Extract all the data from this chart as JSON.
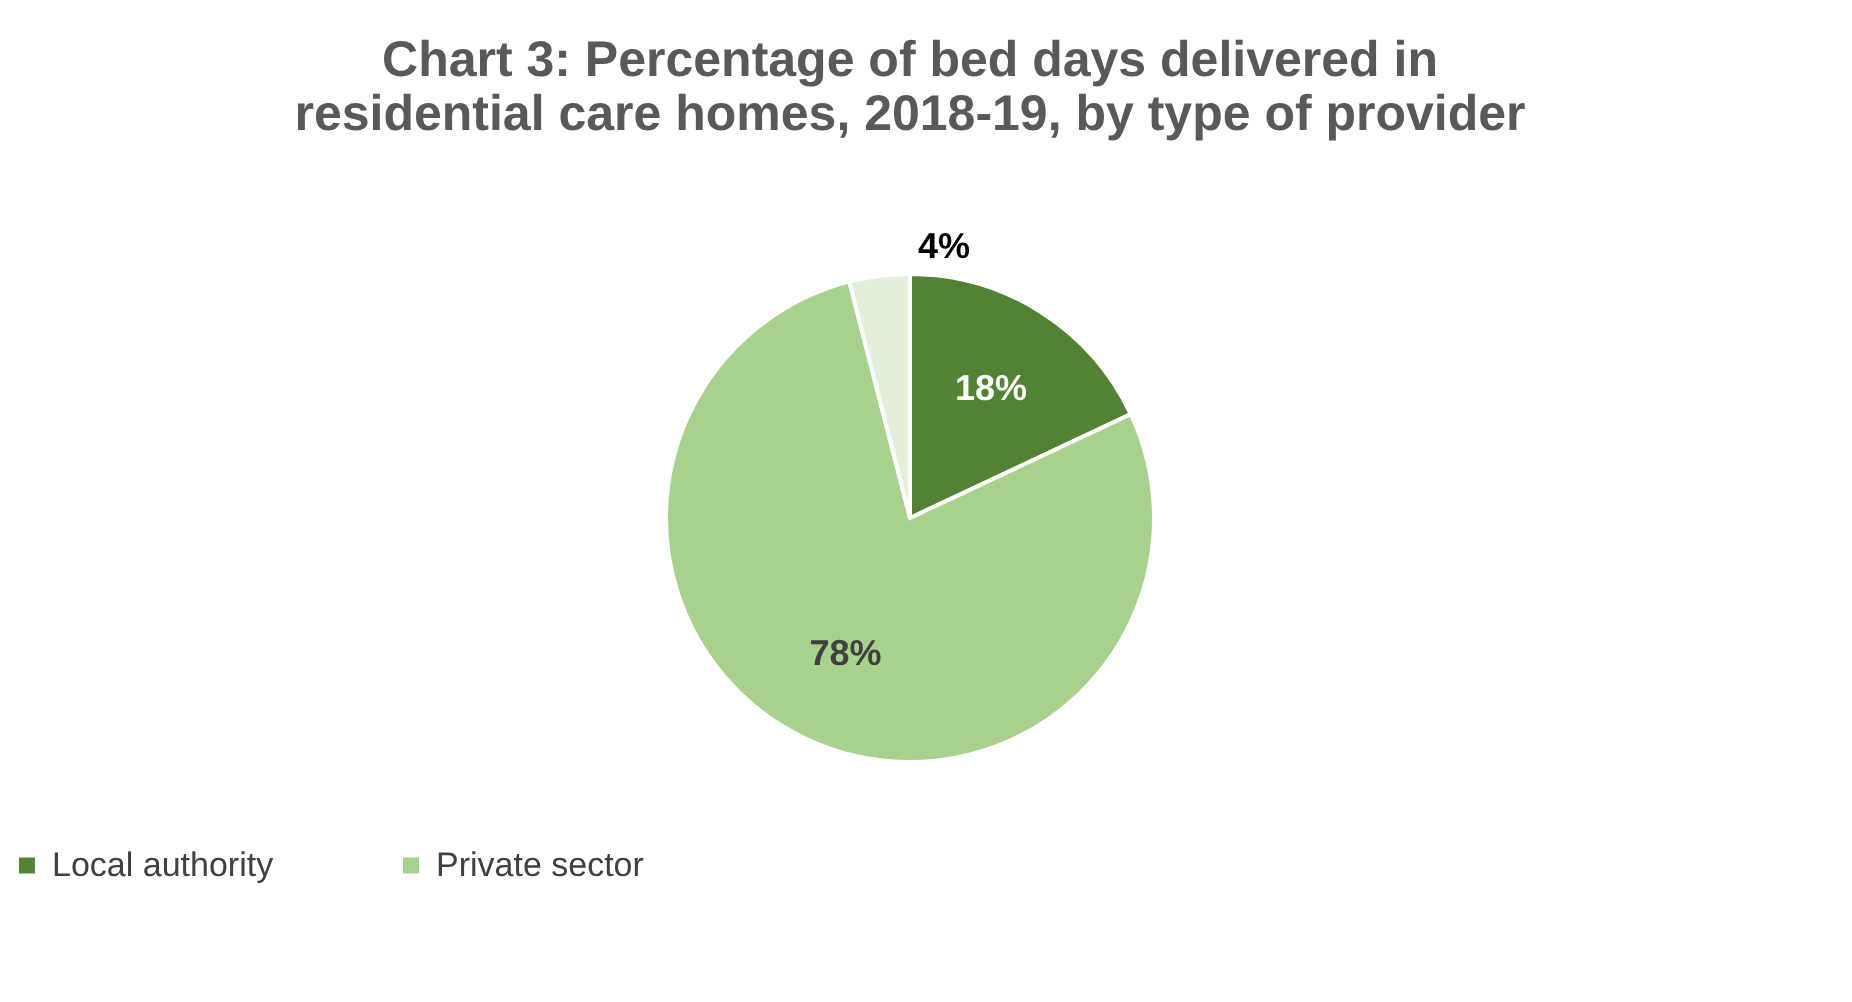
{
  "chart_data": {
    "type": "pie",
    "title": [
      "Chart 3: Percentage of bed days delivered in",
      "residential care homes, 2018-19, by type of provider"
    ],
    "categories": [
      "Local authority",
      "Private sector",
      null
    ],
    "values": [
      18,
      78,
      4
    ],
    "colors": [
      "#548235",
      "#a9d18e",
      "#e2efda"
    ],
    "value_labels": [
      "18%",
      "78%",
      "4%"
    ],
    "legend": "bottom"
  }
}
